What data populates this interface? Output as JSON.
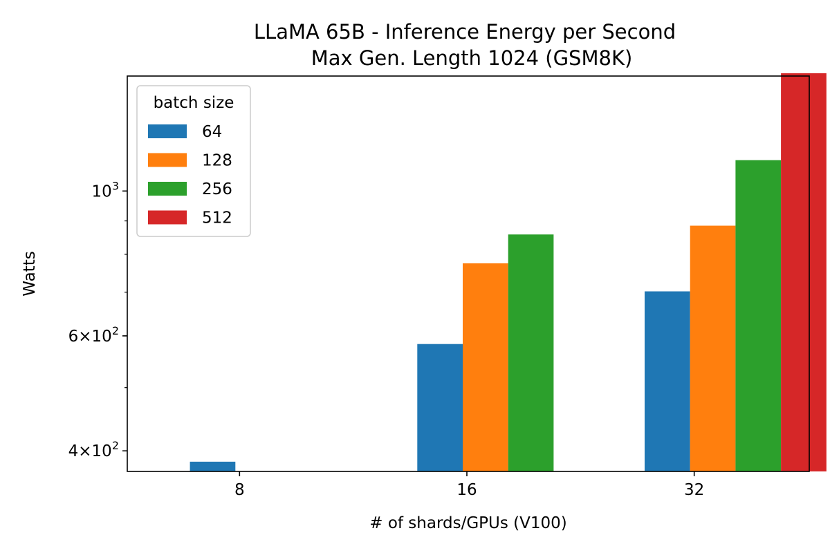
{
  "chart_data": {
    "type": "bar",
    "title_line1": "LLaMA 65B - Inference Energy per Second",
    "title_line2": "Max Gen. Length 1024 (GSM8K)",
    "xlabel": "# of shards/GPUs (V100)",
    "ylabel": "Watts",
    "y_scale": "log",
    "ylim": [
      372,
      1500
    ],
    "categories": [
      "8",
      "16",
      "32"
    ],
    "legend_title": "batch size",
    "legend_position": "upper-left",
    "grid": false,
    "yticks_major": [
      {
        "value": 400,
        "mantissa": "4",
        "sep": "×",
        "base": "10",
        "exp": "2"
      },
      {
        "value": 600,
        "mantissa": "6",
        "sep": "×",
        "base": "10",
        "exp": "2"
      },
      {
        "value": 1000,
        "mantissa": "",
        "sep": "",
        "base": "10",
        "exp": "3"
      }
    ],
    "yticks_minor": [
      500,
      700,
      800,
      900
    ],
    "series": [
      {
        "name": "64",
        "color": "#1f77b4",
        "values": [
          385,
          583,
          702
        ]
      },
      {
        "name": "128",
        "color": "#ff7f0e",
        "values": [
          null,
          775,
          885
        ]
      },
      {
        "name": "256",
        "color": "#2ca02c",
        "values": [
          null,
          858,
          1115
        ]
      },
      {
        "name": "512",
        "color": "#d62728",
        "values": [
          null,
          null,
          1515
        ]
      }
    ]
  }
}
